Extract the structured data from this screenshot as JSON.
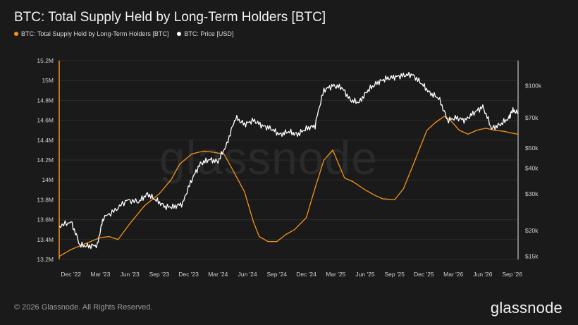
{
  "title": "BTC: Total Supply Held by Long-Term Holders [BTC]",
  "legend": [
    {
      "label": "BTC: Total Supply Held by Long-Term Holders [BTC]",
      "color": "#f7931a"
    },
    {
      "label": "BTC: Price [USD]",
      "color": "#ffffff"
    }
  ],
  "watermark": "glassnode",
  "footer": {
    "copyright": "© 2026 Glassnode. All Rights Reserved.",
    "logo": "glassnode"
  },
  "chart_data": {
    "type": "line",
    "x_ticks": [
      "Dec '22",
      "Mar '23",
      "Jun '23",
      "Sep '23",
      "Dec '23",
      "Mar '24",
      "Jun '24",
      "Sep '24",
      "Dec '24",
      "Mar '25",
      "Jun '25",
      "Sep '25",
      "Dec '25",
      "Mar '26",
      "Jun '26",
      "Sep '26"
    ],
    "x_range": [
      -0.4,
      15.2
    ],
    "left_axis": {
      "ticks": [
        "13.2M",
        "13.4M",
        "13.6M",
        "13.8M",
        "14M",
        "14.2M",
        "14.4M",
        "14.6M",
        "14.8M",
        "15M",
        "15.2M"
      ],
      "tick_values": [
        13.2,
        13.4,
        13.6,
        13.8,
        14.0,
        14.2,
        14.4,
        14.6,
        14.8,
        15.0,
        15.2
      ],
      "range": [
        13.2,
        15.2
      ],
      "unit": "M BTC"
    },
    "right_axis": {
      "scale": "log",
      "ticks": [
        "$15k",
        "$20k",
        "$30k",
        "$40k",
        "$50k",
        "$70k",
        "$100k"
      ],
      "tick_values": [
        15,
        20,
        30,
        40,
        50,
        70,
        100
      ],
      "range": [
        14.5,
        132
      ],
      "unit": "k USD"
    },
    "grid": true,
    "series": [
      {
        "name": "BTC: Total Supply Held by Long-Term Holders [BTC]",
        "axis": "left",
        "color": "#f7931a",
        "points": [
          [
            -0.4,
            13.23
          ],
          [
            0,
            13.3
          ],
          [
            0.5,
            13.36
          ],
          [
            1,
            13.42
          ],
          [
            1.3,
            13.43
          ],
          [
            1.6,
            13.4
          ],
          [
            2,
            13.56
          ],
          [
            2.5,
            13.74
          ],
          [
            3,
            13.86
          ],
          [
            3.4,
            14.0
          ],
          [
            3.7,
            14.16
          ],
          [
            4.1,
            14.26
          ],
          [
            4.5,
            14.29
          ],
          [
            4.8,
            14.28
          ],
          [
            5.2,
            14.26
          ],
          [
            5.5,
            14.1
          ],
          [
            5.9,
            13.88
          ],
          [
            6.2,
            13.58
          ],
          [
            6.4,
            13.43
          ],
          [
            6.7,
            13.38
          ],
          [
            7.0,
            13.38
          ],
          [
            7.3,
            13.45
          ],
          [
            7.6,
            13.5
          ],
          [
            8.0,
            13.62
          ],
          [
            8.3,
            13.92
          ],
          [
            8.6,
            14.2
          ],
          [
            8.9,
            14.3
          ],
          [
            9.3,
            14.02
          ],
          [
            9.6,
            13.98
          ],
          [
            10.0,
            13.9
          ],
          [
            10.3,
            13.85
          ],
          [
            10.6,
            13.81
          ],
          [
            11.0,
            13.8
          ],
          [
            11.3,
            13.91
          ],
          [
            11.7,
            14.2
          ],
          [
            12.1,
            14.5
          ],
          [
            12.4,
            14.58
          ],
          [
            12.7,
            14.64
          ],
          [
            12.9,
            14.6
          ],
          [
            13.2,
            14.5
          ],
          [
            13.5,
            14.46
          ],
          [
            13.8,
            14.5
          ],
          [
            14.1,
            14.52
          ],
          [
            14.4,
            14.5
          ],
          [
            14.7,
            14.49
          ],
          [
            15.0,
            14.47
          ],
          [
            15.2,
            14.46
          ]
        ]
      },
      {
        "name": "BTC: Price [USD]",
        "axis": "right",
        "color": "#ffffff",
        "points": [
          [
            -0.4,
            21
          ],
          [
            0,
            22
          ],
          [
            0.3,
            17
          ],
          [
            0.6,
            16.8
          ],
          [
            0.9,
            17
          ],
          [
            1.1,
            23
          ],
          [
            1.5,
            25
          ],
          [
            1.9,
            28
          ],
          [
            2.3,
            27.5
          ],
          [
            2.6,
            30
          ],
          [
            2.9,
            28
          ],
          [
            3.2,
            26
          ],
          [
            3.5,
            26
          ],
          [
            3.8,
            27
          ],
          [
            4.1,
            35
          ],
          [
            4.4,
            42
          ],
          [
            4.7,
            44
          ],
          [
            5.0,
            43
          ],
          [
            5.3,
            52
          ],
          [
            5.6,
            70
          ],
          [
            5.9,
            65
          ],
          [
            6.2,
            68
          ],
          [
            6.5,
            64
          ],
          [
            6.8,
            62
          ],
          [
            7.1,
            58
          ],
          [
            7.4,
            60
          ],
          [
            7.7,
            58
          ],
          [
            8.0,
            62
          ],
          [
            8.3,
            64
          ],
          [
            8.6,
            95
          ],
          [
            8.9,
            100
          ],
          [
            9.2,
            98
          ],
          [
            9.5,
            85
          ],
          [
            9.8,
            83
          ],
          [
            10.1,
            95
          ],
          [
            10.4,
            103
          ],
          [
            10.7,
            108
          ],
          [
            11.0,
            110
          ],
          [
            11.3,
            112
          ],
          [
            11.6,
            113
          ],
          [
            11.9,
            103
          ],
          [
            12.2,
            92
          ],
          [
            12.5,
            87
          ],
          [
            12.8,
            68
          ],
          [
            13.1,
            70
          ],
          [
            13.4,
            68
          ],
          [
            13.7,
            74
          ],
          [
            14.0,
            79
          ],
          [
            14.3,
            62
          ],
          [
            14.6,
            65
          ],
          [
            14.9,
            70
          ],
          [
            15.0,
            76
          ],
          [
            15.2,
            74
          ]
        ]
      }
    ]
  }
}
